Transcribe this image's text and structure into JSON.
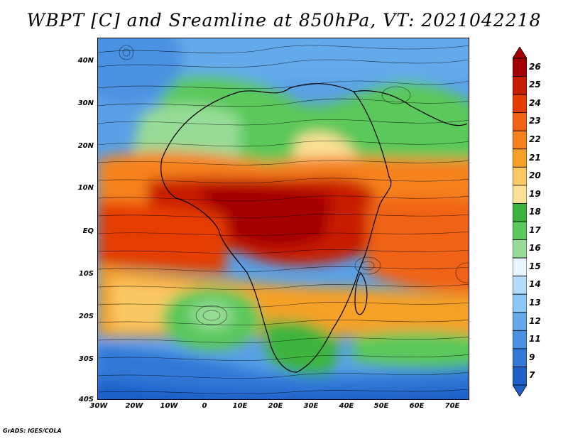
{
  "title": "WBPT [C] and Sreamline at 850hPa, VT: 2021042218",
  "map": {
    "lat_labels": [
      "40N",
      "30N",
      "20N",
      "10N",
      "EQ",
      "10S",
      "20S",
      "30S",
      "40S"
    ],
    "lon_labels": [
      "30W",
      "20W",
      "10W",
      "0",
      "10E",
      "20E",
      "30E",
      "40E",
      "50E",
      "60E",
      "70E"
    ]
  },
  "colorbar": {
    "levels": [
      "26",
      "25",
      "24",
      "23",
      "22",
      "21",
      "20",
      "19",
      "18",
      "17",
      "16",
      "15",
      "14",
      "13",
      "12",
      "11",
      "9",
      "7"
    ],
    "colors": [
      "#a50000",
      "#c81e00",
      "#e63c00",
      "#f06414",
      "#f5821e",
      "#f5a028",
      "#fac864",
      "#fae196",
      "#3cb43c",
      "#5ac85a",
      "#96dc96",
      "#e6f5ff",
      "#b4dcfa",
      "#8cc8f5",
      "#64aaeb",
      "#4b91e1",
      "#3278d7",
      "#1e5fc8"
    ]
  },
  "credit": "GrADS: IGES/COLA"
}
